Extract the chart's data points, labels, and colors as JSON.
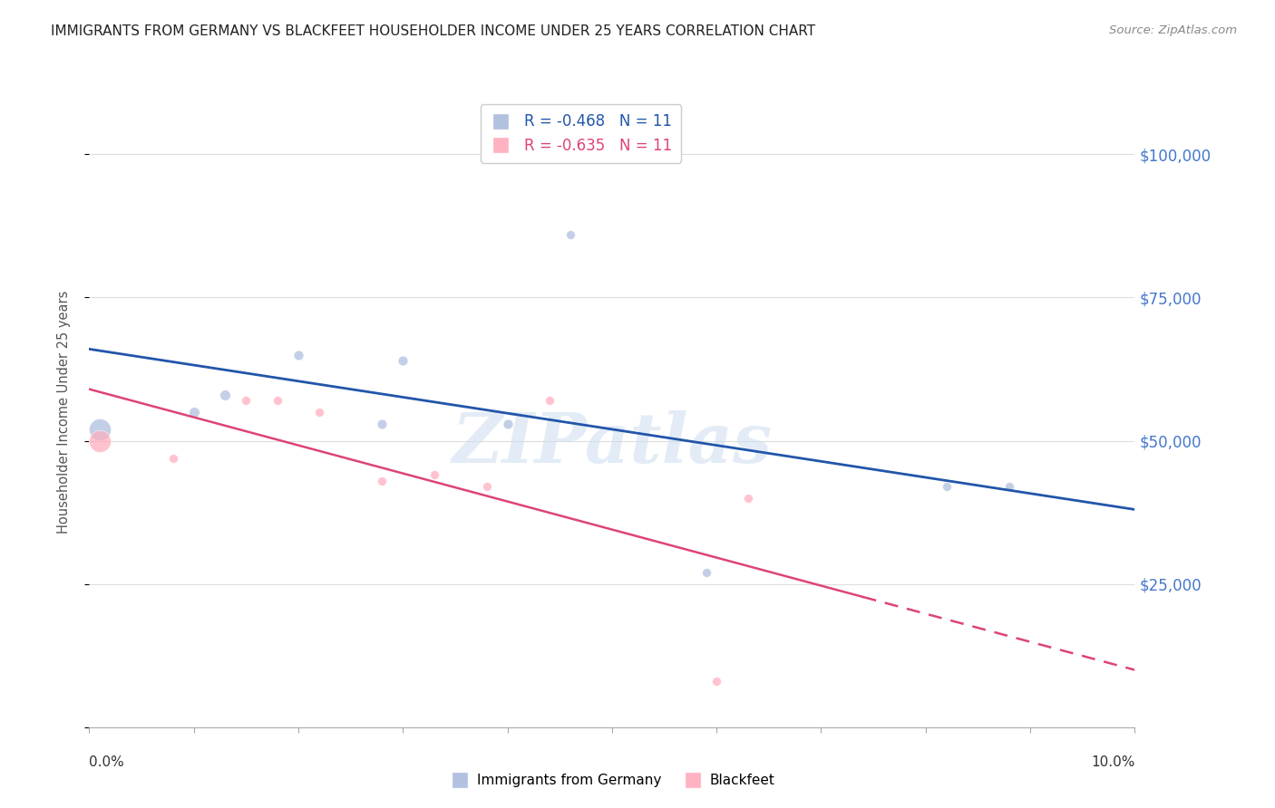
{
  "title": "IMMIGRANTS FROM GERMANY VS BLACKFEET HOUSEHOLDER INCOME UNDER 25 YEARS CORRELATION CHART",
  "source": "Source: ZipAtlas.com",
  "ylabel": "Householder Income Under 25 years",
  "legend_blue": "R = -0.468   N = 11",
  "legend_pink": "R = -0.635   N = 11",
  "legend_label_blue": "Immigrants from Germany",
  "legend_label_pink": "Blackfeet",
  "xlim": [
    0.0,
    0.1
  ],
  "ylim": [
    0,
    110000
  ],
  "ytick_values": [
    0,
    25000,
    50000,
    75000,
    100000
  ],
  "ytick_labels_right": [
    "",
    "$25,000",
    "$50,000",
    "$75,000",
    "$100,000"
  ],
  "watermark": "ZIPatlas",
  "blue_points": [
    [
      0.001,
      52000,
      300
    ],
    [
      0.01,
      55000,
      70
    ],
    [
      0.013,
      58000,
      70
    ],
    [
      0.02,
      65000,
      60
    ],
    [
      0.028,
      53000,
      60
    ],
    [
      0.03,
      64000,
      60
    ],
    [
      0.04,
      53000,
      60
    ],
    [
      0.046,
      86000,
      50
    ],
    [
      0.059,
      27000,
      50
    ],
    [
      0.082,
      42000,
      50
    ],
    [
      0.088,
      42000,
      50
    ]
  ],
  "pink_points": [
    [
      0.001,
      50000,
      300
    ],
    [
      0.008,
      47000,
      50
    ],
    [
      0.015,
      57000,
      50
    ],
    [
      0.018,
      57000,
      50
    ],
    [
      0.022,
      55000,
      50
    ],
    [
      0.028,
      43000,
      50
    ],
    [
      0.033,
      44000,
      50
    ],
    [
      0.038,
      42000,
      50
    ],
    [
      0.044,
      57000,
      50
    ],
    [
      0.063,
      40000,
      50
    ],
    [
      0.06,
      8000,
      50
    ]
  ],
  "blue_line_x": [
    0.0,
    0.1
  ],
  "blue_line_y": [
    66000,
    38000
  ],
  "pink_line_x": [
    0.0,
    0.1
  ],
  "pink_line_y": [
    59000,
    10000
  ],
  "pink_line_solid_end": 0.074,
  "background_color": "#ffffff",
  "grid_color": "#dddddd",
  "blue_scatter_color": "#aabbdd",
  "blue_line_color": "#2255aa",
  "pink_scatter_color": "#ffaabb",
  "pink_line_color": "#dd4477",
  "title_color": "#222222",
  "right_tick_color": "#4477cc",
  "source_color": "#888888",
  "watermark_color": "#ccddef"
}
